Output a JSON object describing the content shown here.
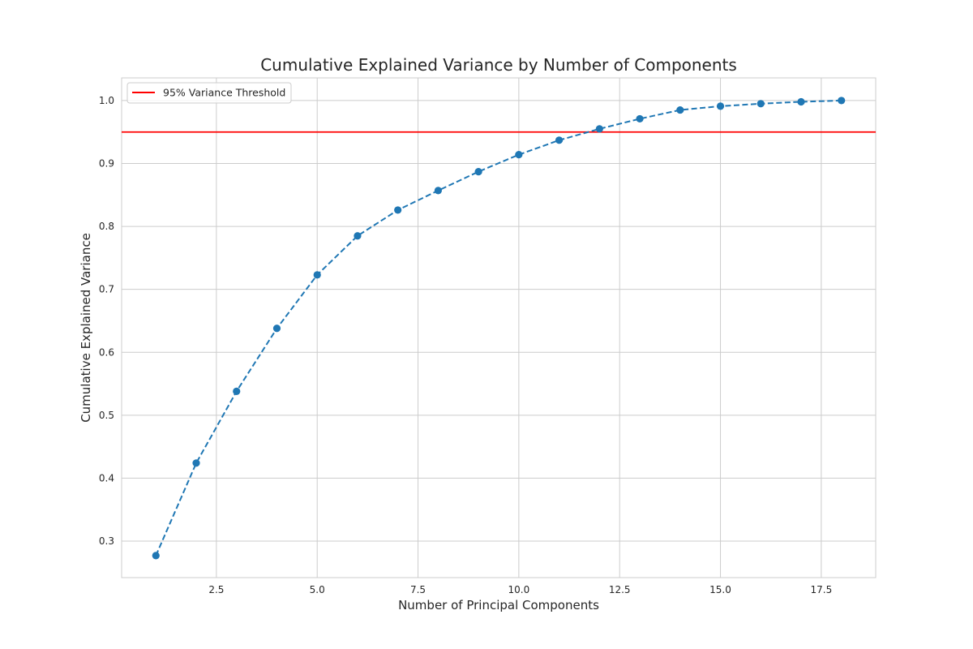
{
  "chart_data": {
    "type": "line",
    "title": "Cumulative Explained Variance by Number of Components",
    "xlabel": "Number of Principal Components",
    "ylabel": "Cumulative Explained Variance",
    "xlim": [
      0.15,
      18.85
    ],
    "ylim": [
      0.242,
      1.036
    ],
    "grid": true,
    "legend_position": "top-left",
    "x_ticks": [
      2.5,
      5.0,
      7.5,
      10.0,
      12.5,
      15.0,
      17.5
    ],
    "x_tick_labels": [
      "2.5",
      "5.0",
      "7.5",
      "10.0",
      "12.5",
      "15.0",
      "17.5"
    ],
    "y_ticks": [
      0.3,
      0.4,
      0.5,
      0.6,
      0.7,
      0.8,
      0.9,
      1.0
    ],
    "y_tick_labels": [
      "0.3",
      "0.4",
      "0.5",
      "0.6",
      "0.7",
      "0.8",
      "0.9",
      "1.0"
    ],
    "series": [
      {
        "style": "dashed line with circle markers",
        "color": "#1f77b4",
        "x": [
          1,
          2,
          3,
          4,
          5,
          6,
          7,
          8,
          9,
          10,
          11,
          12,
          13,
          14,
          15,
          16,
          17,
          18
        ],
        "y": [
          0.277,
          0.424,
          0.538,
          0.638,
          0.723,
          0.785,
          0.826,
          0.857,
          0.887,
          0.914,
          0.937,
          0.955,
          0.971,
          0.985,
          0.991,
          0.995,
          0.998,
          1.0
        ]
      }
    ],
    "threshold": {
      "y": 0.95,
      "color": "#ff0000",
      "label": "95% Variance Threshold"
    }
  }
}
